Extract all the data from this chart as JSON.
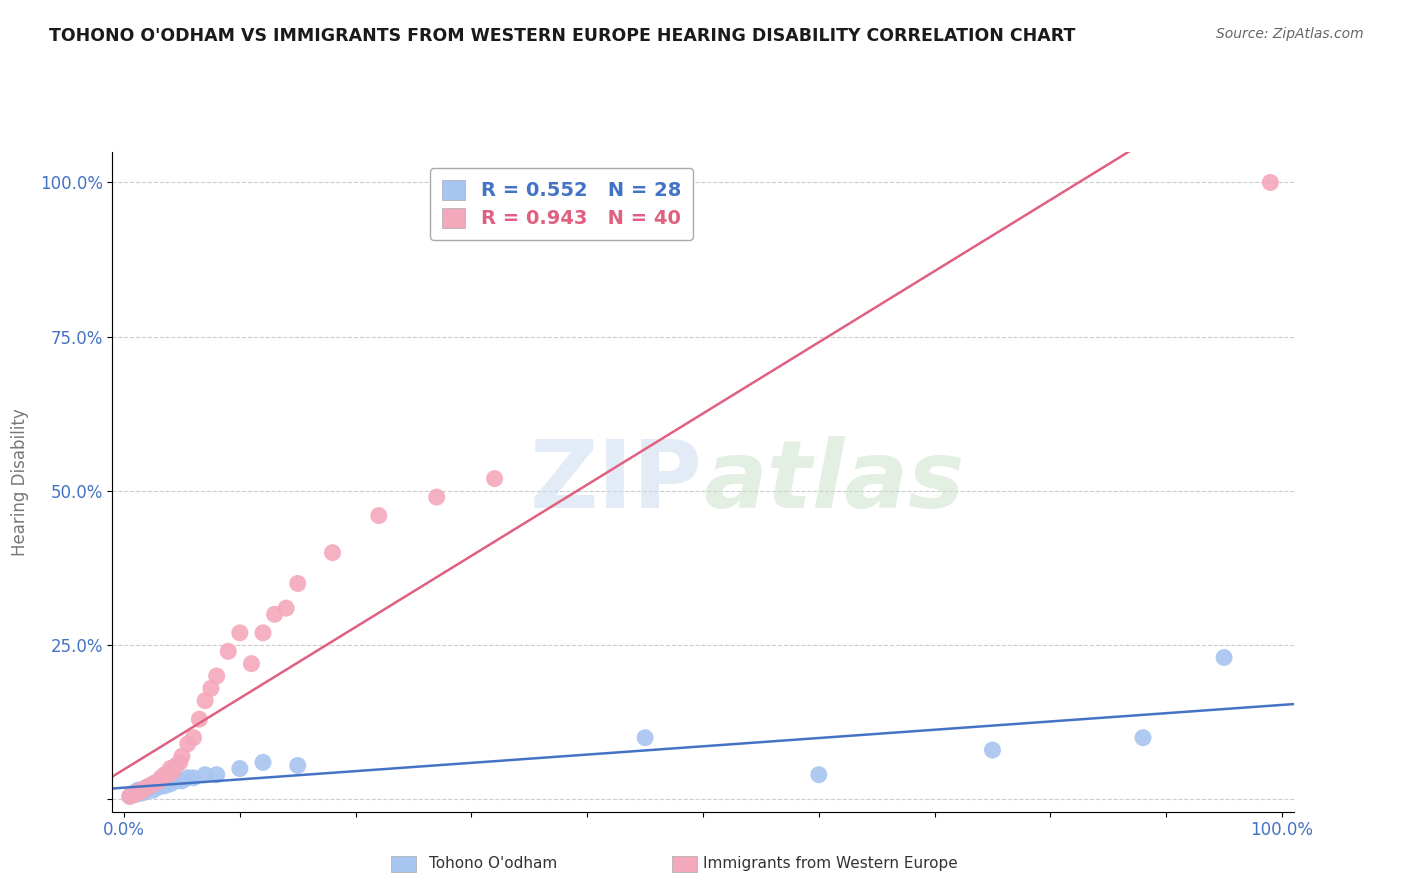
{
  "title": "TOHONO O'ODHAM VS IMMIGRANTS FROM WESTERN EUROPE HEARING DISABILITY CORRELATION CHART",
  "source": "Source: ZipAtlas.com",
  "ylabel": "Hearing Disability",
  "watermark": "ZIPatlas",
  "series1_label": "Tohono O'odham",
  "series1_R": 0.552,
  "series1_N": 28,
  "series1_color": "#a8c4f0",
  "series1_line_color": "#4472c4",
  "series2_label": "Immigrants from Western Europe",
  "series2_R": 0.943,
  "series2_N": 40,
  "series2_color": "#f4a8bc",
  "series2_line_color": "#e06080",
  "background_color": "#ffffff",
  "grid_color": "#cccccc",
  "series1_x": [
    0.005,
    0.008,
    0.01,
    0.012,
    0.015,
    0.018,
    0.02,
    0.022,
    0.025,
    0.03,
    0.032,
    0.035,
    0.038,
    0.04,
    0.045,
    0.05,
    0.055,
    0.06,
    0.07,
    0.08,
    0.1,
    0.12,
    0.15,
    0.45,
    0.6,
    0.75,
    0.88,
    0.95
  ],
  "series1_y": [
    0.005,
    0.01,
    0.008,
    0.015,
    0.01,
    0.012,
    0.018,
    0.02,
    0.015,
    0.02,
    0.025,
    0.022,
    0.028,
    0.025,
    0.03,
    0.03,
    0.035,
    0.035,
    0.04,
    0.04,
    0.05,
    0.06,
    0.055,
    0.1,
    0.04,
    0.08,
    0.1,
    0.23
  ],
  "series2_x": [
    0.005,
    0.007,
    0.009,
    0.01,
    0.012,
    0.014,
    0.015,
    0.017,
    0.018,
    0.02,
    0.022,
    0.025,
    0.027,
    0.03,
    0.032,
    0.035,
    0.038,
    0.04,
    0.042,
    0.045,
    0.048,
    0.05,
    0.055,
    0.06,
    0.065,
    0.07,
    0.075,
    0.08,
    0.09,
    0.1,
    0.11,
    0.12,
    0.13,
    0.14,
    0.15,
    0.18,
    0.22,
    0.27,
    0.32,
    0.99
  ],
  "series2_y": [
    0.005,
    0.007,
    0.008,
    0.01,
    0.012,
    0.013,
    0.015,
    0.016,
    0.018,
    0.02,
    0.022,
    0.025,
    0.027,
    0.03,
    0.035,
    0.04,
    0.04,
    0.05,
    0.045,
    0.055,
    0.06,
    0.07,
    0.09,
    0.1,
    0.13,
    0.16,
    0.18,
    0.2,
    0.24,
    0.27,
    0.22,
    0.27,
    0.3,
    0.31,
    0.35,
    0.4,
    0.46,
    0.49,
    0.52,
    1.0
  ]
}
